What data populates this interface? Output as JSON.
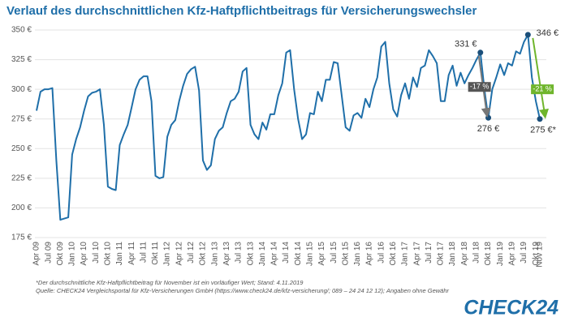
{
  "chart_data": {
    "type": "line",
    "title": "Verlauf des durchschnittlichen Kfz-Haftpflichtbeitrags für Versicherungswechsler",
    "categories": [
      "Apr 09",
      null,
      null,
      "Jul 09",
      null,
      null,
      "Okt 09",
      null,
      null,
      "Jan 10",
      null,
      null,
      "Apr 10",
      null,
      null,
      "Jul 10",
      null,
      null,
      "Okt 10",
      null,
      null,
      "Jan 11",
      null,
      null,
      "Apr 11",
      null,
      null,
      "Jul 11",
      null,
      null,
      "Okt 11",
      null,
      null,
      "Jan 12",
      null,
      null,
      "Apr 12",
      null,
      null,
      "Jul 12",
      null,
      null,
      "Okt 12",
      null,
      null,
      "Jan 13",
      null,
      null,
      "Apr 13",
      null,
      null,
      "Jul 13",
      null,
      null,
      "Okt 13",
      null,
      null,
      "Jan 14",
      null,
      null,
      "Apr 14",
      null,
      null,
      "Jul 14",
      null,
      null,
      "Okt 14",
      null,
      null,
      "Jan 15",
      null,
      null,
      "Apr 15",
      null,
      null,
      "Jul 15",
      null,
      null,
      "Okt 15",
      null,
      null,
      "Jan 16",
      null,
      null,
      "Apr 16",
      null,
      null,
      "Jul 16",
      null,
      null,
      "Okt 16",
      null,
      null,
      "Jan 17",
      null,
      null,
      "Apr 17",
      null,
      null,
      "Jul 17",
      null,
      null,
      "Okt 17",
      null,
      null,
      "Jan 18",
      null,
      null,
      "Apr 18",
      null,
      null,
      "Jul 18",
      null,
      null,
      "Okt 18",
      null,
      null,
      "Jan 19",
      null,
      null,
      "Apr 19",
      null,
      null,
      "Jul 19",
      null,
      null,
      "Okt 19",
      "Nov 19"
    ],
    "values": [
      282,
      298,
      300,
      300,
      301,
      240,
      190,
      191,
      192,
      245,
      258,
      268,
      282,
      294,
      297,
      298,
      300,
      270,
      218,
      216,
      215,
      253,
      262,
      270,
      285,
      300,
      308,
      311,
      311,
      290,
      227,
      225,
      226,
      260,
      270,
      274,
      290,
      303,
      313,
      317,
      319,
      299,
      240,
      232,
      236,
      258,
      265,
      268,
      280,
      290,
      292,
      298,
      315,
      318,
      270,
      262,
      258,
      272,
      266,
      279,
      279,
      295,
      305,
      331,
      333,
      300,
      275,
      258,
      262,
      280,
      279,
      298,
      290,
      308,
      308,
      323,
      322,
      295,
      268,
      265,
      278,
      280,
      276,
      292,
      285,
      300,
      310,
      336,
      340,
      305,
      283,
      277,
      295,
      305,
      292,
      310,
      302,
      318,
      320,
      333,
      328,
      322,
      290,
      290,
      312,
      320,
      303,
      314,
      305,
      312,
      318,
      325,
      331,
      300,
      276,
      300,
      310,
      321,
      312,
      322,
      320,
      332,
      330,
      340,
      346,
      310,
      290,
      275
    ],
    "color": "#1f6fa9",
    "ylim": [
      175,
      350
    ],
    "yticks": [
      {
        "value": 175,
        "label": "175 €"
      },
      {
        "value": 200,
        "label": "200 €"
      },
      {
        "value": 225,
        "label": "225 €"
      },
      {
        "value": 250,
        "label": "250 €"
      },
      {
        "value": 275,
        "label": "275 €"
      },
      {
        "value": 300,
        "label": "300 €"
      },
      {
        "value": 325,
        "label": "325 €"
      },
      {
        "value": 350,
        "label": "350 €"
      }
    ],
    "grid": true,
    "annotations": [
      "331 €",
      "276 €",
      "-17 %",
      "346 €",
      "275 €*",
      "-21 %"
    ],
    "footnotes": [
      "*Der durchschnittliche Kfz-Haftpflichtbeitrag für November ist ein vorläufiger Wert; Stand: 4.11.2019",
      "Quelle: CHECK24 Vergleichsportal für Kfz-Versicherungen GmbH (https://www.check24.de/kfz-versicherung/; 089 – 24 24 12 12); Angaben ohne Gewähr"
    ],
    "logo": "CHECK24"
  }
}
